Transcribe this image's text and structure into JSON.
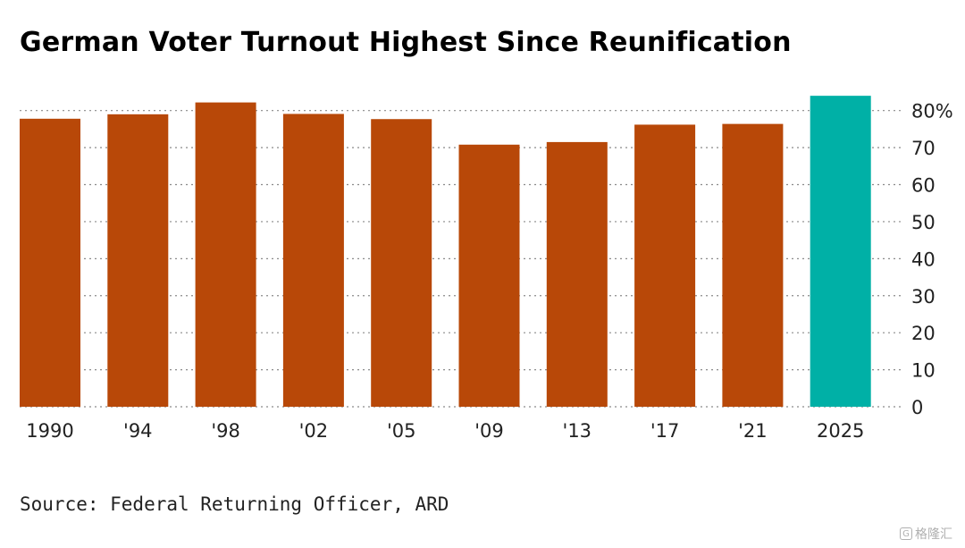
{
  "title": "German Voter Turnout Highest Since Reunification",
  "source": "Source: Federal Returning Officer, ARD",
  "watermark": {
    "icon": "logo-icon",
    "text": "格隆汇"
  },
  "colors": {
    "bar": "#b84808",
    "highlight": "#00b0a6",
    "grid": "#8a8a8a",
    "text": "#222222"
  },
  "chart_data": {
    "type": "bar",
    "title": "German Voter Turnout Highest Since Reunification",
    "categories": [
      "1990",
      "'94",
      "'98",
      "'02",
      "'05",
      "'09",
      "'13",
      "'17",
      "'21",
      "2025"
    ],
    "values": [
      77.8,
      79.0,
      82.2,
      79.1,
      77.7,
      70.8,
      71.5,
      76.2,
      76.4,
      84.0
    ],
    "highlight_index": 9,
    "xlabel": "",
    "ylabel": "",
    "ylim": [
      0,
      85
    ],
    "yticks": [
      0,
      10,
      20,
      30,
      40,
      50,
      60,
      70,
      80
    ],
    "ytick_labels": [
      "0",
      "10",
      "20",
      "30",
      "40",
      "50",
      "60",
      "70",
      "80%"
    ],
    "y_axis_side": "right",
    "grid": true
  }
}
